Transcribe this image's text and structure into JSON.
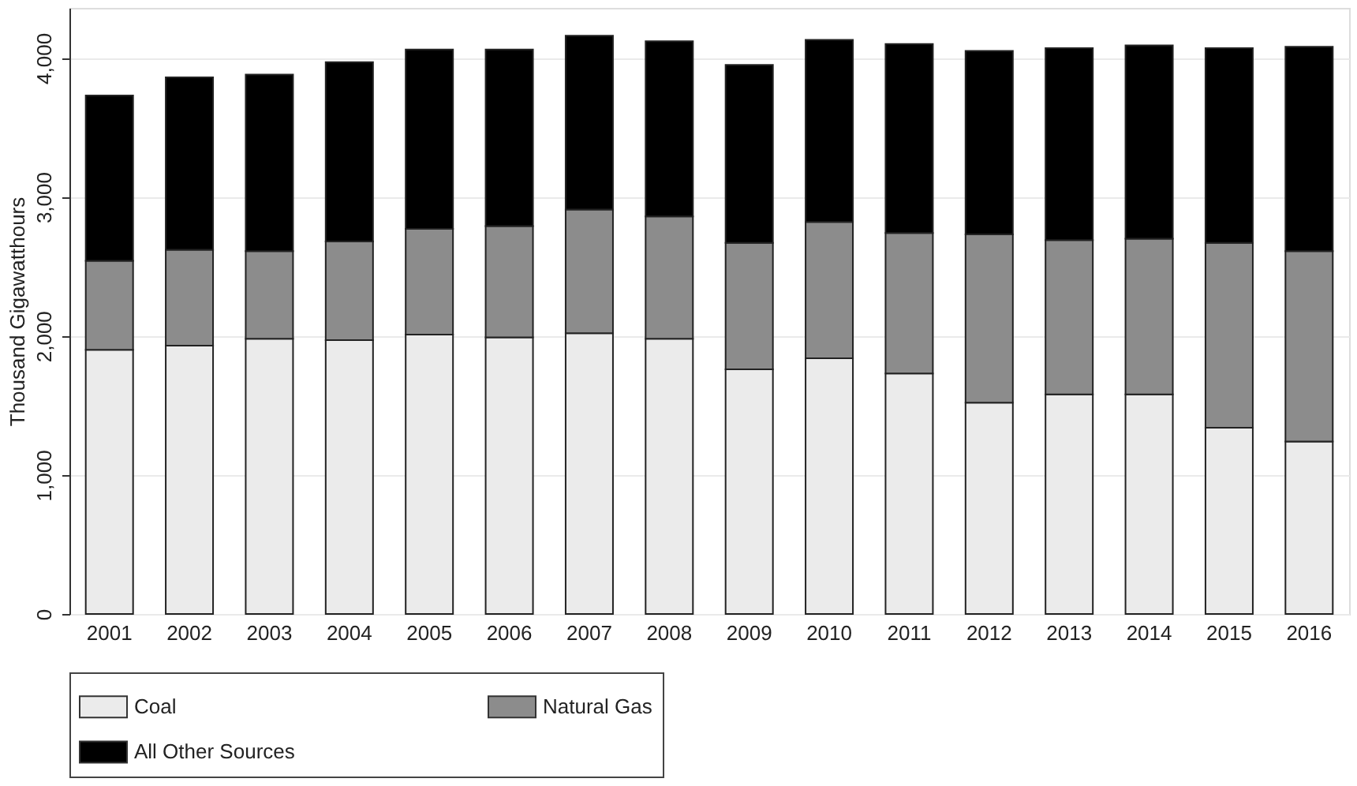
{
  "chart_data": {
    "type": "bar",
    "stacked": true,
    "ylabel": "Thousand Gigawatthours",
    "categories": [
      "2001",
      "2002",
      "2003",
      "2004",
      "2005",
      "2006",
      "2007",
      "2008",
      "2009",
      "2010",
      "2011",
      "2012",
      "2013",
      "2014",
      "2015",
      "2016"
    ],
    "series": [
      {
        "name": "Coal",
        "color": "#ebebeb",
        "values": [
          1900,
          1930,
          1980,
          1970,
          2010,
          1990,
          2020,
          1980,
          1760,
          1840,
          1730,
          1520,
          1580,
          1580,
          1340,
          1240
        ]
      },
      {
        "name": "Natural Gas",
        "color": "#8c8c8c",
        "values": [
          640,
          690,
          630,
          710,
          760,
          800,
          890,
          880,
          910,
          980,
          1010,
          1210,
          1110,
          1120,
          1330,
          1370
        ]
      },
      {
        "name": "All Other Sources",
        "color": "#000000",
        "values": [
          1190,
          1240,
          1270,
          1290,
          1290,
          1270,
          1250,
          1260,
          1280,
          1310,
          1360,
          1320,
          1380,
          1390,
          1400,
          1470
        ]
      }
    ],
    "ylim": [
      0,
      4360
    ],
    "yticks": [
      0,
      {
        "value": 1000,
        "label": "1,000"
      },
      {
        "value": 2000,
        "label": "2,000"
      },
      {
        "value": 3000,
        "label": "3,000"
      },
      {
        "value": 4000,
        "label": "4,000"
      }
    ],
    "grid": "y",
    "legend": "bottom"
  }
}
